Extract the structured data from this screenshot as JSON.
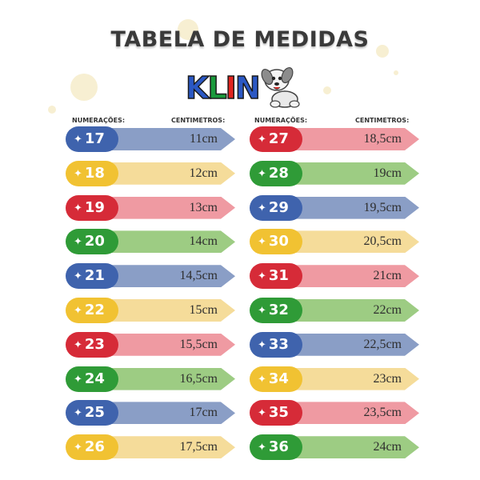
{
  "title": "TABELA DE MEDIDAS",
  "logo": {
    "letters": [
      {
        "char": "K",
        "color": "#2b58c4"
      },
      {
        "char": "L",
        "color": "#1a9a3c"
      },
      {
        "char": "I",
        "color": "#e0241f"
      },
      {
        "char": "N",
        "color": "#2b58c4"
      }
    ],
    "mascot": "dog-mascot-icon"
  },
  "headers": {
    "numbering": "NUMERAÇÕES:",
    "centimeters": "CENTIMETROS:"
  },
  "star_glyph": "✦",
  "colors": {
    "blue": {
      "pill": "#3f63ad",
      "arrow": "#8a9ec6"
    },
    "yellow": {
      "pill": "#f1c232",
      "arrow": "#f5dc9a"
    },
    "red": {
      "pill": "#d62b38",
      "arrow": "#ef9aa2"
    },
    "green": {
      "pill": "#2f9b37",
      "arrow": "#9dcc83"
    }
  },
  "sizes_left": [
    {
      "number": "17",
      "cm": "11cm",
      "color": "blue"
    },
    {
      "number": "18",
      "cm": "12cm",
      "color": "yellow"
    },
    {
      "number": "19",
      "cm": "13cm",
      "color": "red"
    },
    {
      "number": "20",
      "cm": "14cm",
      "color": "green"
    },
    {
      "number": "21",
      "cm": "14,5cm",
      "color": "blue"
    },
    {
      "number": "22",
      "cm": "15cm",
      "color": "yellow"
    },
    {
      "number": "23",
      "cm": "15,5cm",
      "color": "red"
    },
    {
      "number": "24",
      "cm": "16,5cm",
      "color": "green"
    },
    {
      "number": "25",
      "cm": "17cm",
      "color": "blue"
    },
    {
      "number": "26",
      "cm": "17,5cm",
      "color": "yellow"
    }
  ],
  "sizes_right": [
    {
      "number": "27",
      "cm": "18,5cm",
      "color": "red"
    },
    {
      "number": "28",
      "cm": "19cm",
      "color": "green"
    },
    {
      "number": "29",
      "cm": "19,5cm",
      "color": "blue"
    },
    {
      "number": "30",
      "cm": "20,5cm",
      "color": "yellow"
    },
    {
      "number": "31",
      "cm": "21cm",
      "color": "red"
    },
    {
      "number": "32",
      "cm": "22cm",
      "color": "green"
    },
    {
      "number": "33",
      "cm": "22,5cm",
      "color": "blue"
    },
    {
      "number": "34",
      "cm": "23cm",
      "color": "yellow"
    },
    {
      "number": "35",
      "cm": "23,5cm",
      "color": "red"
    },
    {
      "number": "36",
      "cm": "24cm",
      "color": "green"
    }
  ]
}
